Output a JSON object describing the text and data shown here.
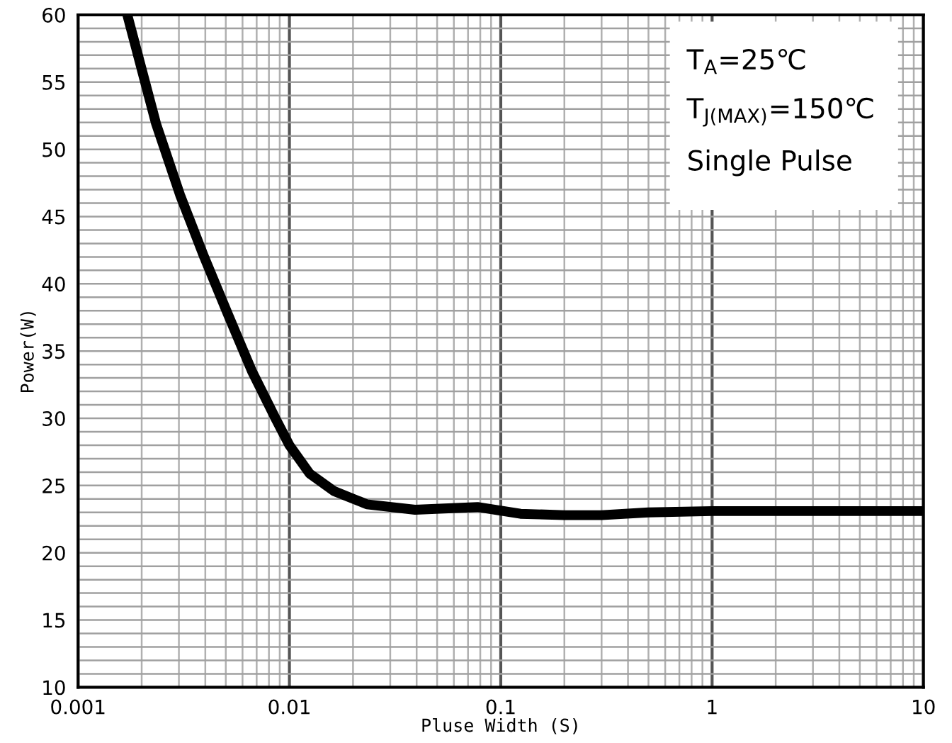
{
  "chart_data": {
    "type": "line",
    "xlabel": "Pluse Width (S)",
    "ylabel": "Power(W)",
    "x": [
      0.00171,
      0.00234,
      0.00304,
      0.00395,
      0.00513,
      0.00665,
      0.00865,
      0.01,
      0.01245,
      0.0162,
      0.0233,
      0.0393,
      0.0776,
      0.124,
      0.2,
      0.3,
      0.5,
      1,
      2,
      10
    ],
    "series": [
      {
        "color": "#000000",
        "values": [
          60,
          51.9,
          46.6,
          42.0,
          37.7,
          33.5,
          29.9,
          28.0,
          25.9,
          24.6,
          23.6,
          23.2,
          23.4,
          22.9,
          22.8,
          22.8,
          23.0,
          23.1,
          23.1,
          23.1
        ]
      }
    ],
    "log": "x",
    "xlim": [
      0.001,
      10
    ],
    "ylim": [
      10,
      60
    ],
    "xticks": [
      0.001,
      {
        "value": 0.002,
        "label": null
      },
      {
        "value": 0.003,
        "label": null
      },
      {
        "value": 0.004,
        "label": null
      },
      {
        "value": 0.005,
        "label": null
      },
      {
        "value": 0.006,
        "label": null
      },
      {
        "value": 0.007,
        "label": null
      },
      {
        "value": 0.008,
        "label": null
      },
      {
        "value": 0.009,
        "label": null
      },
      0.01,
      {
        "value": 0.02,
        "label": null
      },
      {
        "value": 0.03,
        "label": null
      },
      {
        "value": 0.04,
        "label": null
      },
      {
        "value": 0.05,
        "label": null
      },
      {
        "value": 0.06,
        "label": null
      },
      {
        "value": 0.07,
        "label": null
      },
      {
        "value": 0.08,
        "label": null
      },
      {
        "value": 0.09,
        "label": null
      },
      0.1,
      {
        "value": 0.2,
        "label": null
      },
      {
        "value": 0.3,
        "label": null
      },
      {
        "value": 0.4,
        "label": null
      },
      {
        "value": 0.5,
        "label": null
      },
      {
        "value": 0.6,
        "label": null
      },
      {
        "value": 0.7,
        "label": null
      },
      {
        "value": 0.8,
        "label": null
      },
      {
        "value": 0.9,
        "label": null
      },
      1,
      {
        "value": 2,
        "label": null
      },
      {
        "value": 3,
        "label": null
      },
      {
        "value": 4,
        "label": null
      },
      {
        "value": 5,
        "label": null
      },
      {
        "value": 6,
        "label": null
      },
      {
        "value": 7,
        "label": null
      },
      {
        "value": 8,
        "label": null
      },
      {
        "value": 9,
        "label": null
      },
      10
    ],
    "yticks": [
      10,
      {
        "value": 11,
        "label": null
      },
      {
        "value": 12,
        "label": null
      },
      {
        "value": 13,
        "label": null
      },
      {
        "value": 14,
        "label": null
      },
      15,
      {
        "value": 16,
        "label": null
      },
      {
        "value": 17,
        "label": null
      },
      {
        "value": 18,
        "label": null
      },
      {
        "value": 19,
        "label": null
      },
      20,
      {
        "value": 21,
        "label": null
      },
      {
        "value": 22,
        "label": null
      },
      {
        "value": 23,
        "label": null
      },
      {
        "value": 24,
        "label": null
      },
      25,
      {
        "value": 26,
        "label": null
      },
      {
        "value": 27,
        "label": null
      },
      {
        "value": 28,
        "label": null
      },
      {
        "value": 29,
        "label": null
      },
      30,
      {
        "value": 31,
        "label": null
      },
      {
        "value": 32,
        "label": null
      },
      {
        "value": 33,
        "label": null
      },
      {
        "value": 34,
        "label": null
      },
      35,
      {
        "value": 36,
        "label": null
      },
      {
        "value": 37,
        "label": null
      },
      {
        "value": 38,
        "label": null
      },
      {
        "value": 39,
        "label": null
      },
      40,
      {
        "value": 41,
        "label": null
      },
      {
        "value": 42,
        "label": null
      },
      {
        "value": 43,
        "label": null
      },
      {
        "value": 44,
        "label": null
      },
      45,
      {
        "value": 46,
        "label": null
      },
      {
        "value": 47,
        "label": null
      },
      {
        "value": 48,
        "label": null
      },
      {
        "value": 49,
        "label": null
      },
      50,
      {
        "value": 51,
        "label": null
      },
      {
        "value": 52,
        "label": null
      },
      {
        "value": 53,
        "label": null
      },
      {
        "value": 54,
        "label": null
      },
      55,
      {
        "value": 56,
        "label": null
      },
      {
        "value": 57,
        "label": null
      },
      {
        "value": 58,
        "label": null
      },
      {
        "value": 59,
        "label": null
      },
      60
    ],
    "grid": true,
    "marker": "none",
    "line_style": "solid",
    "annotations": [
      "T$_{A}$=25℃",
      "T$_{J(MAX)}$=150℃",
      "Single Pulse"
    ]
  }
}
